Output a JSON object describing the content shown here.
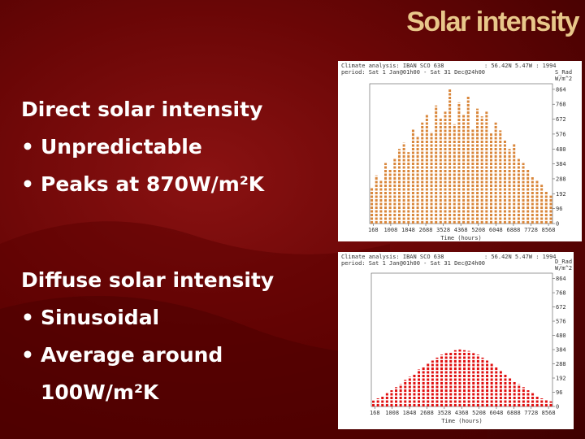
{
  "slide": {
    "title": "Solar intensity",
    "groups": [
      {
        "heading": "Direct solar intensity",
        "items": [
          "Unpredictable",
          "Peaks at 870W/m²K"
        ]
      },
      {
        "heading": "Diffuse solar intensity",
        "items": [
          "Sinusoidal",
          "Average around 100W/m²K"
        ]
      }
    ]
  },
  "chart_data": [
    {
      "type": "bar",
      "header": [
        "Climate analysis: IBAN SCO 638",
        "period: Sat 1 Jan@01h00 - Sat 31 Dec@24h00",
        ": 56.42N 5.47W : 1994"
      ],
      "y_label": [
        "S_Rad",
        "W/m^2"
      ],
      "x_label": "Time (hours)",
      "color": "#d9863a",
      "x": [
        100,
        320,
        540,
        760,
        980,
        1200,
        1420,
        1640,
        1860,
        2080,
        2300,
        2520,
        2740,
        2960,
        3180,
        3400,
        3620,
        3840,
        4060,
        4280,
        4500,
        4720,
        4940,
        5160,
        5380,
        5600,
        5820,
        6040,
        6260,
        6480,
        6700,
        6920,
        7140,
        7360,
        7580,
        7800,
        8020,
        8240,
        8460,
        8680
      ],
      "values": [
        230,
        310,
        280,
        390,
        350,
        420,
        480,
        520,
        460,
        610,
        560,
        650,
        700,
        590,
        760,
        680,
        720,
        870,
        640,
        780,
        700,
        820,
        610,
        740,
        690,
        720,
        580,
        650,
        600,
        540,
        480,
        510,
        420,
        390,
        350,
        300,
        280,
        250,
        210,
        180
      ],
      "xlim": [
        0,
        8760
      ],
      "xticks": [
        168,
        1008,
        1848,
        2688,
        3528,
        4368,
        5208,
        6048,
        6888,
        7728,
        8568
      ],
      "ylim": [
        0,
        900
      ],
      "yticks": [
        0,
        96,
        192,
        288,
        384,
        480,
        576,
        672,
        768,
        864
      ]
    },
    {
      "type": "bar",
      "header": [
        "Climate analysis: IBAN SCO 638",
        "period: Sat 1 Jan@01h00 - Sat 31 Dec@24h00",
        ": 56.42N 5.47W : 1994"
      ],
      "y_label": [
        "D_Rad",
        "W/m^2"
      ],
      "x_label": "Time (hours)",
      "color": "#e01010",
      "x": [
        100,
        320,
        540,
        760,
        980,
        1200,
        1420,
        1640,
        1860,
        2080,
        2300,
        2520,
        2740,
        2960,
        3180,
        3400,
        3620,
        3840,
        4060,
        4280,
        4500,
        4720,
        4940,
        5160,
        5380,
        5600,
        5820,
        6040,
        6260,
        6480,
        6700,
        6920,
        7140,
        7360,
        7580,
        7800,
        8020,
        8240,
        8460,
        8680
      ],
      "values": [
        40,
        55,
        70,
        90,
        110,
        130,
        150,
        180,
        200,
        220,
        250,
        270,
        290,
        310,
        330,
        350,
        360,
        370,
        380,
        385,
        380,
        375,
        360,
        350,
        330,
        310,
        290,
        270,
        240,
        220,
        190,
        170,
        150,
        130,
        110,
        90,
        70,
        55,
        45,
        35
      ],
      "xlim": [
        0,
        8760
      ],
      "xticks": [
        168,
        1008,
        1848,
        2688,
        3528,
        4368,
        5208,
        6048,
        6888,
        7728,
        8568
      ],
      "ylim": [
        0,
        900
      ],
      "yticks": [
        0,
        96,
        192,
        288,
        384,
        480,
        576,
        672,
        768,
        864
      ]
    }
  ]
}
